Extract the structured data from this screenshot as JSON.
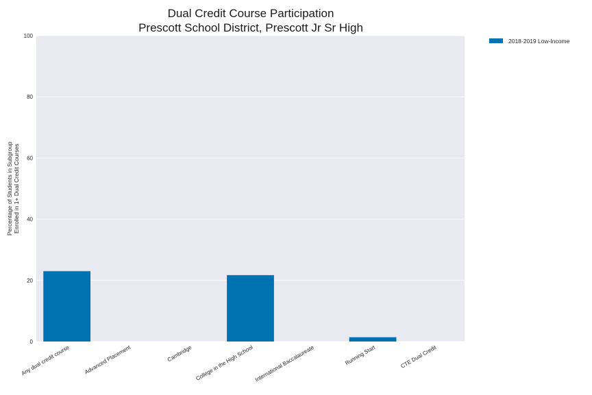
{
  "chart_data": {
    "type": "bar",
    "title_lines": [
      "Dual Credit Course Participation",
      "Prescott School District, Prescott Jr Sr High"
    ],
    "xlabel": "",
    "ylabel_lines": [
      "Percentage of Students in Subgroup",
      "Enrolled in 1+ Dual Credit Courses"
    ],
    "categories": [
      "Any dual credit course",
      "Advanced Placement",
      "Cambridge",
      "College in the High School",
      "International Baccalaureate",
      "Running Start",
      "CTE Dual Credit"
    ],
    "series": [
      {
        "name": "2018-2019 Low-Income",
        "color": "#0072b2",
        "values": [
          23,
          0,
          0,
          21.7,
          0,
          1.4,
          0
        ]
      }
    ],
    "ylim": [
      0,
      100
    ],
    "yticks": [
      "0",
      "20",
      "40",
      "60",
      "80",
      "100"
    ],
    "grid": true,
    "legend_position": "upper-right-outside"
  },
  "colors": {
    "plot_background": "#e9e9f1",
    "grid": "#ffffff",
    "bar": "#0072b2"
  }
}
